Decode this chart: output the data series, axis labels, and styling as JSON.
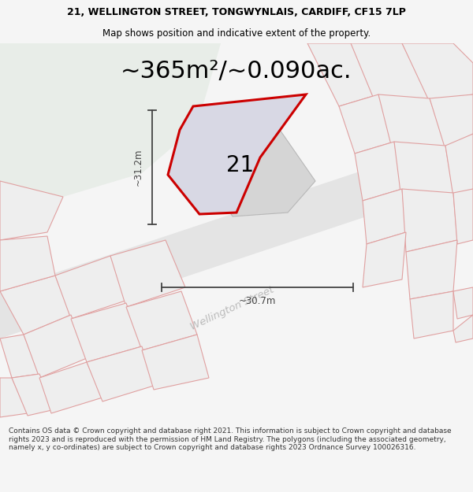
{
  "title_line1": "21, WELLINGTON STREET, TONGWYNLAIS, CARDIFF, CF15 7LP",
  "title_line2": "Map shows position and indicative extent of the property.",
  "area_text": "~365m²/~0.090ac.",
  "dim_height": "~31.2m",
  "dim_width": "~30.7m",
  "house_number": "21",
  "footer_text": "Contains OS data © Crown copyright and database right 2021. This information is subject to Crown copyright and database rights 2023 and is reproduced with the permission of HM Land Registry. The polygons (including the associated geometry, namely x, y co-ordinates) are subject to Crown copyright and database rights 2023 Ordnance Survey 100026316.",
  "bg_color": "#f5f5f5",
  "map_bg": "#ffffff",
  "green_area_color": "#e8ede8",
  "plot_fill_color": "#d8d8e4",
  "building_fill_color": "#d8d8d8",
  "road_color": "#e4e4e4",
  "outline_color": "#cc0000",
  "parcel_edge_color": "#e0a0a0",
  "parcel_fill_color": "#eeeeee",
  "dim_line_color": "#444444",
  "road_label_color": "#bbbbbb",
  "title_color": "#000000",
  "footer_color": "#333333",
  "title_fontsize": 9.0,
  "subtitle_fontsize": 8.5,
  "area_fontsize": 22,
  "dim_fontsize": 8.5,
  "number_fontsize": 20,
  "footer_fontsize": 6.5
}
